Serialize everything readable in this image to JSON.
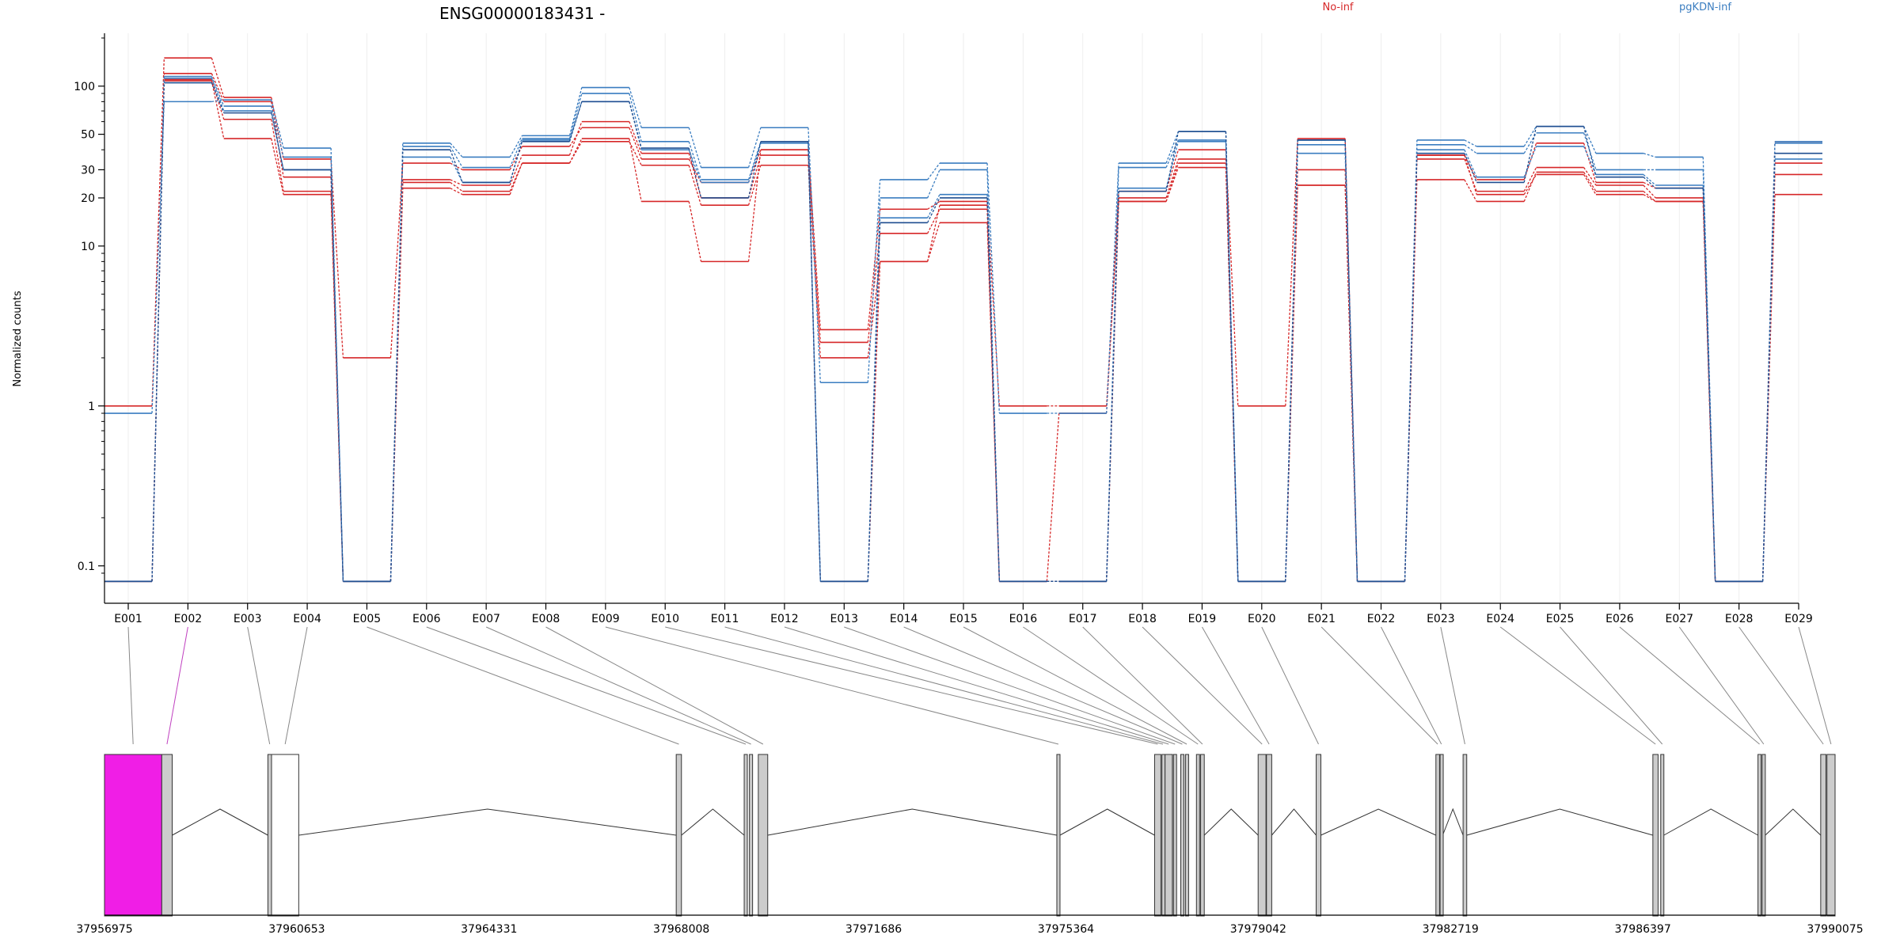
{
  "chart_data": {
    "type": "line",
    "title": "ENSG00000183431 -",
    "ylabel": "Normalized counts",
    "yscale": "log",
    "ylim": [
      0.075,
      200
    ],
    "y_ticks": [
      {
        "value": 0.1,
        "label": "0.1"
      },
      {
        "value": 1,
        "label": "1"
      },
      {
        "value": 10,
        "label": "10"
      },
      {
        "value": 20,
        "label": "20"
      },
      {
        "value": 30,
        "label": "30"
      },
      {
        "value": 50,
        "label": "50"
      },
      {
        "value": 100,
        "label": "100"
      }
    ],
    "categories": [
      "E001",
      "E002",
      "E003",
      "E004",
      "E005",
      "E006",
      "E007",
      "E008",
      "E009",
      "E010",
      "E011",
      "E012",
      "E013",
      "E014",
      "E015",
      "E016",
      "E017",
      "E018",
      "E019",
      "E020",
      "E021",
      "E022",
      "E023",
      "E024",
      "E025",
      "E026",
      "E027",
      "E028",
      "E029"
    ],
    "legend": [
      {
        "label": "No-inf",
        "color": "#d62728"
      },
      {
        "label": "pgKDN-inf",
        "color": "#3a7dc0"
      }
    ],
    "series": [
      {
        "group": "No-inf",
        "color": "#d62728",
        "values": [
          1.0,
          150,
          85,
          35,
          2.0,
          33,
          30,
          42,
          55,
          35,
          25,
          40,
          3.0,
          17,
          19,
          1.0,
          1.0,
          22,
          40,
          1.0,
          47,
          0.08,
          37,
          26,
          44,
          25,
          23,
          0.08,
          45
        ]
      },
      {
        "group": "No-inf",
        "color": "#d62728",
        "values": [
          0.08,
          120,
          80,
          27,
          0.08,
          26,
          24,
          37,
          60,
          38,
          20,
          37,
          2.5,
          12,
          17,
          0.08,
          0.9,
          20,
          35,
          0.08,
          30,
          0.08,
          35,
          22,
          31,
          24,
          20,
          0.08,
          33
        ]
      },
      {
        "group": "No-inf",
        "color": "#d62728",
        "values": [
          0.08,
          110,
          62,
          22,
          0.08,
          23,
          21,
          33,
          45,
          32,
          18,
          32,
          2.0,
          8,
          14,
          0.08,
          0.08,
          19,
          31,
          0.08,
          24,
          0.08,
          26,
          19,
          29,
          22,
          19,
          0.08,
          21
        ]
      },
      {
        "group": "No-inf",
        "color": "#d62728",
        "values": [
          0.08,
          108,
          47,
          21,
          0.08,
          25,
          22,
          33,
          47,
          19,
          8,
          40,
          0.08,
          8,
          18,
          0.08,
          0.08,
          19,
          33,
          0.08,
          24,
          0.08,
          37,
          21,
          28,
          21,
          19,
          0.08,
          28
        ]
      },
      {
        "group": "pgKDN-inf",
        "color": "#3a7dc0",
        "values": [
          0.9,
          80,
          82,
          41,
          0.08,
          44,
          36,
          49,
          98,
          55,
          31,
          55,
          1.4,
          26,
          33,
          0.9,
          0.9,
          33,
          52,
          0.08,
          46,
          0.08,
          46,
          42,
          56,
          38,
          36,
          0.08,
          45
        ]
      },
      {
        "group": "pgKDN-inf",
        "color": "#3a7dc0",
        "values": [
          0.08,
          115,
          75,
          36,
          0.08,
          42,
          31,
          47,
          90,
          45,
          26,
          45,
          0.08,
          20,
          30,
          0.08,
          0.08,
          31,
          46,
          0.08,
          43,
          0.08,
          43,
          38,
          51,
          30,
          30,
          0.08,
          44
        ]
      },
      {
        "group": "pgKDN-inf",
        "color": "#3a7dc0",
        "values": [
          0.08,
          112,
          70,
          30,
          0.08,
          36,
          25,
          46,
          80,
          40,
          25,
          44,
          0.08,
          15,
          21,
          0.08,
          0.08,
          23,
          45,
          0.08,
          38,
          0.08,
          40,
          27,
          42,
          28,
          24,
          0.08,
          35
        ]
      },
      {
        "group": "pgKDN-inf",
        "color": "#1f4e90",
        "values": [
          0.08,
          105,
          68,
          30,
          0.08,
          40,
          25,
          45,
          80,
          41,
          20,
          45,
          0.08,
          14,
          20,
          0.08,
          0.08,
          22,
          52,
          0.08,
          46,
          0.08,
          38,
          25,
          56,
          27,
          23,
          0.08,
          38
        ]
      }
    ],
    "genomic_axis": {
      "ticks": [
        "37956975",
        "37960653",
        "37964331",
        "37968008",
        "37971686",
        "37975364",
        "37979042",
        "37982719",
        "37986397",
        "37990075"
      ]
    }
  }
}
